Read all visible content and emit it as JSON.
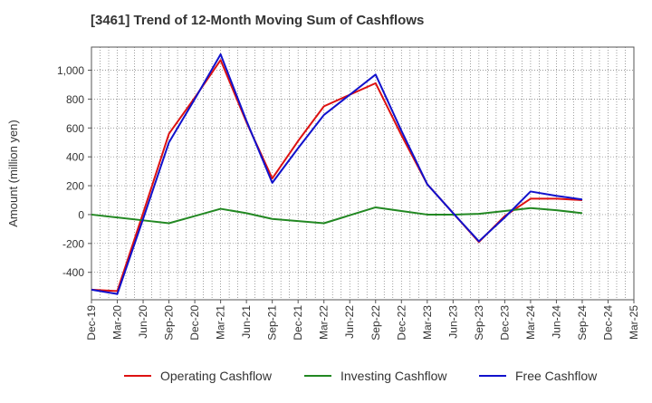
{
  "chart_data": {
    "type": "line",
    "title": "[3461]  Trend of 12-Month Moving Sum of Cashflows",
    "xlabel": "",
    "ylabel": "Amount (million yen)",
    "categories": [
      "Dec-19",
      "Mar-20",
      "Jun-20",
      "Sep-20",
      "Dec-20",
      "Mar-21",
      "Jun-21",
      "Sep-21",
      "Dec-21",
      "Mar-22",
      "Jun-22",
      "Sep-22",
      "Dec-22",
      "Mar-23",
      "Jun-23",
      "Sep-23",
      "Dec-23",
      "Mar-24",
      "Jun-24",
      "Sep-24",
      "Dec-24",
      "Mar-25"
    ],
    "ylim": [
      -590,
      1160
    ],
    "yticks": [
      -400,
      -200,
      0,
      200,
      400,
      600,
      800,
      1000
    ],
    "ytick_labels": [
      "-400",
      "-200",
      "0",
      "200",
      "400",
      "600",
      "800",
      "1,000"
    ],
    "grid": true,
    "legend_position": "bottom",
    "series": [
      {
        "name": "Operating Cashflow",
        "color": "#dd1111",
        "values": [
          -520,
          -530,
          10,
          560,
          810,
          1070,
          640,
          250,
          510,
          750,
          830,
          910,
          550,
          210,
          10,
          -190,
          -10,
          110,
          110,
          100,
          null,
          null
        ]
      },
      {
        "name": "Investing Cashflow",
        "color": "#228822",
        "values": [
          0,
          -20,
          -40,
          -60,
          -10,
          40,
          10,
          -30,
          -45,
          -60,
          -5,
          50,
          25,
          0,
          0,
          5,
          25,
          45,
          30,
          10,
          null,
          null
        ]
      },
      {
        "name": "Free Cashflow",
        "color": "#1111cc",
        "values": [
          -520,
          -550,
          -30,
          500,
          800,
          1110,
          650,
          220,
          460,
          690,
          830,
          970,
          580,
          210,
          10,
          -185,
          -20,
          160,
          130,
          105,
          null,
          null
        ]
      }
    ]
  }
}
